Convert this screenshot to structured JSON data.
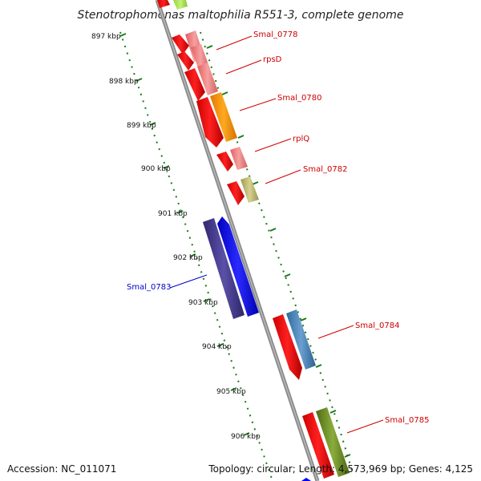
{
  "title": "Stenotrophomonas maltophilia R551-3, complete genome",
  "footer": {
    "accession": "Accession: NC_011071",
    "topology": "Topology: circular; Length: 4,573,969 bp; Genes: 4,125"
  },
  "ticks": [
    "897 kbp",
    "898 kbp",
    "899 kbp",
    "900 kbp",
    "901 kbp",
    "902 kbp",
    "903 kbp",
    "904 kbp",
    "905 kbp",
    "906 kbp"
  ],
  "gene_labels": [
    {
      "id": "smal-0778",
      "text": "Smal_0778",
      "strand": "forward"
    },
    {
      "id": "rpsd",
      "text": "rpsD",
      "strand": "forward"
    },
    {
      "id": "smal-0780",
      "text": "Smal_0780",
      "strand": "forward"
    },
    {
      "id": "rplq",
      "text": "rplQ",
      "strand": "forward"
    },
    {
      "id": "smal-0782",
      "text": "Smal_0782",
      "strand": "forward"
    },
    {
      "id": "smal-0783",
      "text": "Smal_0783",
      "strand": "reverse"
    },
    {
      "id": "smal-0784",
      "text": "Smal_0784",
      "strand": "forward"
    },
    {
      "id": "smal-0785",
      "text": "Smal_0785",
      "strand": "forward"
    }
  ],
  "colors": {
    "backbone": "#8a8a8a",
    "tick": "#1a7a1a",
    "forward_label": "#cc0000",
    "reverse_label": "#0000cc",
    "cds_red": "#ff0000",
    "cds_blue": "#0000ff",
    "salmon": "#f08080",
    "orange": "#ff9900",
    "khaki": "#bdb76b",
    "navy_purple": "#483d8b",
    "steel_blue": "#4682b4",
    "olive": "#6b8e23"
  }
}
